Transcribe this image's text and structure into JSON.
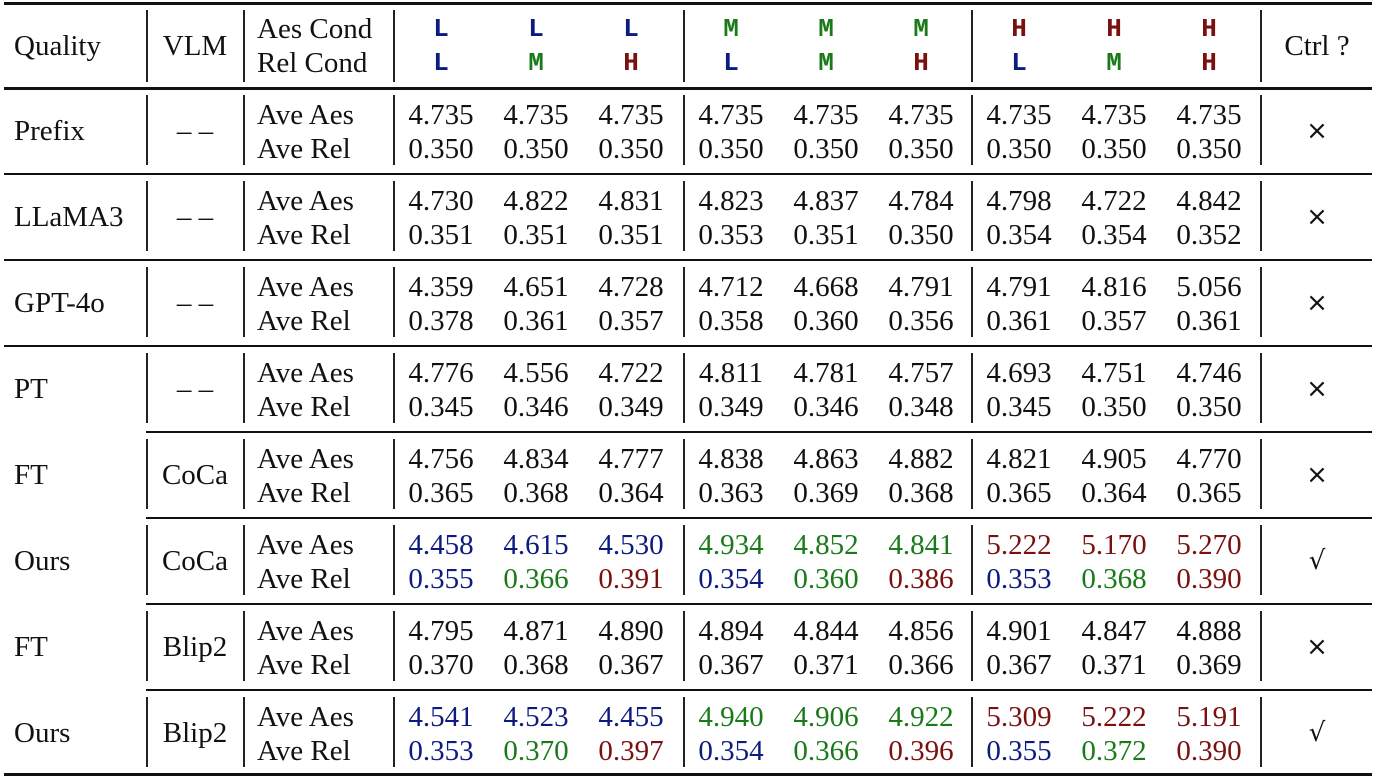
{
  "colors": {
    "L": "#0d1a80",
    "M": "#1a7a1a",
    "H": "#7a1010",
    "default": "#111111"
  },
  "header": {
    "quality": "Quality",
    "vlm": "VLM",
    "aes_cond": "Aes Cond",
    "rel_cond": "Rel Cond",
    "ctrl": "Ctrl ?",
    "aes_levels": [
      "L",
      "L",
      "L",
      "M",
      "M",
      "M",
      "H",
      "H",
      "H"
    ],
    "rel_levels": [
      "L",
      "M",
      "H",
      "L",
      "M",
      "H",
      "L",
      "M",
      "H"
    ]
  },
  "metric_labels": {
    "aes": "Ave Aes",
    "rel": "Ave Rel"
  },
  "rows": [
    {
      "quality": "Prefix",
      "vlm": "– –",
      "ctrl": "×",
      "colored": false,
      "aes": [
        "4.735",
        "4.735",
        "4.735",
        "4.735",
        "4.735",
        "4.735",
        "4.735",
        "4.735",
        "4.735"
      ],
      "rel": [
        "0.350",
        "0.350",
        "0.350",
        "0.350",
        "0.350",
        "0.350",
        "0.350",
        "0.350",
        "0.350"
      ]
    },
    {
      "quality": "LLaMA3",
      "vlm": "– –",
      "ctrl": "×",
      "colored": false,
      "aes": [
        "4.730",
        "4.822",
        "4.831",
        "4.823",
        "4.837",
        "4.784",
        "4.798",
        "4.722",
        "4.842"
      ],
      "rel": [
        "0.351",
        "0.351",
        "0.351",
        "0.353",
        "0.351",
        "0.350",
        "0.354",
        "0.354",
        "0.352"
      ]
    },
    {
      "quality": "GPT-4o",
      "vlm": "– –",
      "ctrl": "×",
      "colored": false,
      "aes": [
        "4.359",
        "4.651",
        "4.728",
        "4.712",
        "4.668",
        "4.791",
        "4.791",
        "4.816",
        "5.056"
      ],
      "rel": [
        "0.378",
        "0.361",
        "0.357",
        "0.358",
        "0.360",
        "0.356",
        "0.361",
        "0.357",
        "0.361"
      ]
    },
    {
      "quality": "PT",
      "vlm": "– –",
      "ctrl": "×",
      "colored": false,
      "aes": [
        "4.776",
        "4.556",
        "4.722",
        "4.811",
        "4.781",
        "4.757",
        "4.693",
        "4.751",
        "4.746"
      ],
      "rel": [
        "0.345",
        "0.346",
        "0.349",
        "0.349",
        "0.346",
        "0.348",
        "0.345",
        "0.350",
        "0.350"
      ]
    },
    {
      "quality": "FT",
      "vlm": "CoCa",
      "ctrl": "×",
      "colored": false,
      "aes": [
        "4.756",
        "4.834",
        "4.777",
        "4.838",
        "4.863",
        "4.882",
        "4.821",
        "4.905",
        "4.770"
      ],
      "rel": [
        "0.365",
        "0.368",
        "0.364",
        "0.363",
        "0.369",
        "0.368",
        "0.365",
        "0.364",
        "0.365"
      ]
    },
    {
      "quality": "Ours",
      "vlm": "CoCa",
      "ctrl": "√",
      "colored": true,
      "aes": [
        "4.458",
        "4.615",
        "4.530",
        "4.934",
        "4.852",
        "4.841",
        "5.222",
        "5.170",
        "5.270"
      ],
      "rel": [
        "0.355",
        "0.366",
        "0.391",
        "0.354",
        "0.360",
        "0.386",
        "0.353",
        "0.368",
        "0.390"
      ]
    },
    {
      "quality": "FT",
      "vlm": "Blip2",
      "ctrl": "×",
      "colored": false,
      "aes": [
        "4.795",
        "4.871",
        "4.890",
        "4.894",
        "4.844",
        "4.856",
        "4.901",
        "4.847",
        "4.888"
      ],
      "rel": [
        "0.370",
        "0.368",
        "0.367",
        "0.367",
        "0.371",
        "0.366",
        "0.367",
        "0.371",
        "0.369"
      ]
    },
    {
      "quality": "Ours",
      "vlm": "Blip2",
      "ctrl": "√",
      "colored": true,
      "aes": [
        "4.541",
        "4.523",
        "4.455",
        "4.940",
        "4.906",
        "4.922",
        "5.309",
        "5.222",
        "5.191"
      ],
      "rel": [
        "0.353",
        "0.370",
        "0.397",
        "0.354",
        "0.366",
        "0.396",
        "0.355",
        "0.372",
        "0.390"
      ]
    }
  ]
}
